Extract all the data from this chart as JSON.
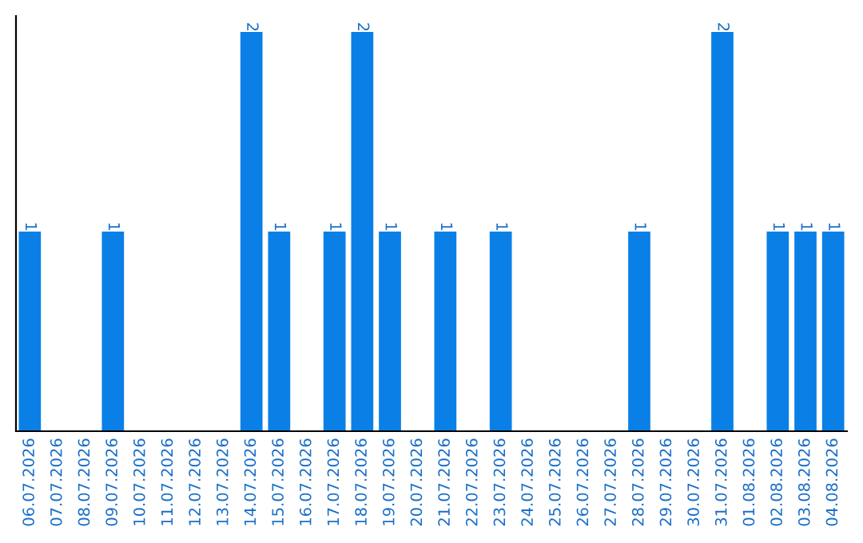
{
  "chart_data": {
    "type": "bar",
    "categories": [
      "06.07.2026",
      "07.07.2026",
      "08.07.2026",
      "09.07.2026",
      "10.07.2026",
      "11.07.2026",
      "12.07.2026",
      "13.07.2026",
      "14.07.2026",
      "15.07.2026",
      "16.07.2026",
      "17.07.2026",
      "18.07.2026",
      "19.07.2026",
      "20.07.2026",
      "21.07.2026",
      "22.07.2026",
      "23.07.2026",
      "24.07.2026",
      "25.07.2026",
      "26.07.2026",
      "27.07.2026",
      "28.07.2026",
      "29.07.2026",
      "30.07.2026",
      "31.07.2026",
      "01.08.2026",
      "02.08.2026",
      "03.08.2026",
      "04.08.2026"
    ],
    "values": [
      1,
      0,
      0,
      1,
      0,
      0,
      0,
      0,
      2,
      1,
      0,
      1,
      2,
      1,
      0,
      1,
      0,
      1,
      0,
      0,
      0,
      0,
      1,
      0,
      0,
      2,
      0,
      1,
      1,
      1
    ],
    "value_labels": [
      "1",
      null,
      null,
      "1",
      null,
      null,
      null,
      null,
      "2",
      "1",
      null,
      "1",
      "2",
      "1",
      null,
      "1",
      null,
      "1",
      null,
      null,
      null,
      null,
      "1",
      null,
      null,
      "2",
      null,
      "1",
      "1",
      "1"
    ],
    "color": "#0a80e6",
    "ylim": [
      0,
      2.08
    ],
    "tick_labels": "x",
    "grid": false,
    "legend": false
  }
}
